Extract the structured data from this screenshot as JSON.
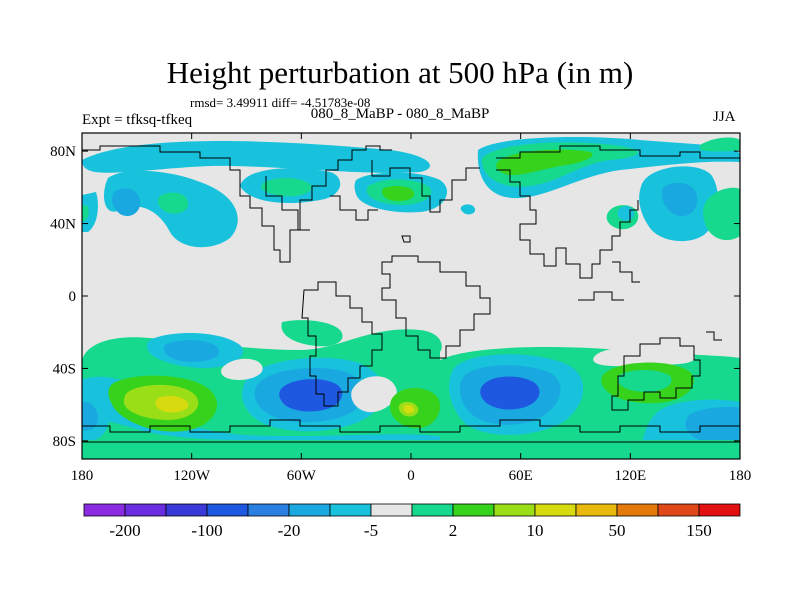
{
  "chart_data": {
    "type": "contour-map",
    "title": "Height perturbation at 500 hPa (in m)",
    "stats_line": "rmsd= 3.49911 diff= -4.51783e-08",
    "subtitle": "080_8_MaBP - 080_8_MaBP",
    "left_label": "Expt = tfksq-tfkeq",
    "right_label": "JJA",
    "x_axis": {
      "range": [
        -180,
        180
      ],
      "ticks": [
        {
          "value": -180,
          "label": "180"
        },
        {
          "value": -120,
          "label": "120W"
        },
        {
          "value": -60,
          "label": "60W"
        },
        {
          "value": 0,
          "label": "0"
        },
        {
          "value": 60,
          "label": "60E"
        },
        {
          "value": 120,
          "label": "120E"
        },
        {
          "value": 180,
          "label": "180"
        }
      ]
    },
    "y_axis": {
      "range": [
        -90,
        90
      ],
      "ticks": [
        {
          "value": 80,
          "label": "80N"
        },
        {
          "value": 40,
          "label": "40N"
        },
        {
          "value": 0,
          "label": "0"
        },
        {
          "value": -40,
          "label": "40S"
        },
        {
          "value": -80,
          "label": "80S"
        }
      ]
    },
    "colorbar": {
      "colors": [
        "#8a2be2",
        "#6a2ee0",
        "#3a3ad8",
        "#1f58e0",
        "#2a7fe0",
        "#1aa8e0",
        "#18c2dc",
        "#e6e6e6",
        "#16d98e",
        "#36d21c",
        "#9ade18",
        "#d8da10",
        "#e8b80c",
        "#e47a0a",
        "#e0481a",
        "#e21010"
      ],
      "labels": [
        "-200",
        "-100",
        "-20",
        "-5",
        "2",
        "10",
        "50",
        "150"
      ]
    },
    "colors": {
      "background_field": "#e6e6e6",
      "coastline": "#000000"
    }
  }
}
